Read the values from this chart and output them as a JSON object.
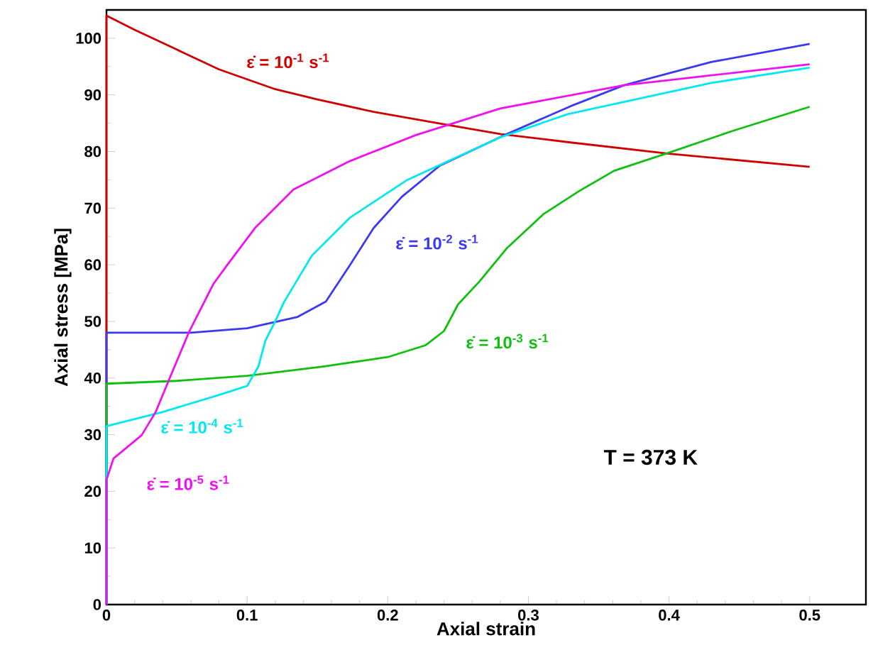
{
  "chart_data": {
    "type": "line",
    "xlabel": "Axial strain",
    "ylabel": "Axial stress [MPa]",
    "xlim": [
      0,
      0.54
    ],
    "ylim": [
      0,
      105
    ],
    "xticks": [
      0,
      0.1,
      0.2,
      0.3,
      0.4,
      0.5
    ],
    "yticks": [
      0,
      10,
      20,
      30,
      40,
      50,
      60,
      70,
      80,
      90,
      100
    ],
    "annotations": [
      "T = 373 K"
    ],
    "series": [
      {
        "name": "ε̇ = 10$^{-1}$ s$^{-1}$",
        "color": "#d00000",
        "x": [
          0,
          0,
          0.02,
          0.05,
          0.08,
          0.12,
          0.15,
          0.19,
          0.24,
          0.28,
          0.33,
          0.4,
          0.5
        ],
        "values": [
          0,
          104,
          101.5,
          98,
          94.5,
          91,
          89.2,
          87,
          84.8,
          83.1,
          81.6,
          79.6,
          77.3
        ]
      },
      {
        "name": "ε̇ = 10$^{-2}$ s$^{-1}$",
        "color": "#3a3af0",
        "x": [
          0,
          0,
          0.06,
          0.1,
          0.136,
          0.156,
          0.173,
          0.19,
          0.21,
          0.237,
          0.284,
          0.33,
          0.368,
          0.43,
          0.5
        ],
        "values": [
          0,
          48,
          48,
          48.8,
          50.8,
          53.5,
          59.9,
          66.5,
          72,
          77.5,
          83,
          88,
          91.7,
          95.8,
          99
        ]
      },
      {
        "name": "ε̇ = 10$^{-3}$ s$^{-1}$",
        "color": "#10c010",
        "x": [
          0,
          0,
          0.05,
          0.1,
          0.153,
          0.2,
          0.227,
          0.24,
          0.25,
          0.265,
          0.285,
          0.311,
          0.336,
          0.361,
          0.4,
          0.446,
          0.5
        ],
        "values": [
          0,
          39,
          39.5,
          40.4,
          42,
          43.7,
          45.8,
          48.3,
          53,
          57,
          63,
          69,
          73,
          76.6,
          79.8,
          83.7,
          87.9
        ]
      },
      {
        "name": "ε̇ = 10$^{-4}$ s$^{-1}$",
        "color": "#00e8f0",
        "x": [
          0,
          0,
          0.04,
          0.08,
          0.1,
          0.108,
          0.113,
          0.12,
          0.126,
          0.146,
          0.173,
          0.214,
          0.28,
          0.328,
          0.43,
          0.5
        ],
        "values": [
          0,
          31.5,
          34,
          37,
          38.6,
          42,
          46.6,
          50,
          53.3,
          61.6,
          68.3,
          75,
          82.5,
          86.6,
          92.1,
          94.8
        ]
      },
      {
        "name": "ε̇ = 10$^{-5}$ s$^{-1}$",
        "color": "#f010f0",
        "x": [
          0,
          0,
          0.005,
          0.025,
          0.035,
          0.045,
          0.059,
          0.076,
          0.086,
          0.106,
          0.133,
          0.173,
          0.22,
          0.28,
          0.368,
          0.5
        ],
        "values": [
          0,
          22,
          25.8,
          29.9,
          34,
          40,
          48.3,
          56.6,
          60,
          66.6,
          73.3,
          78.3,
          82.9,
          87.6,
          91.7,
          95.4
        ]
      }
    ]
  }
}
